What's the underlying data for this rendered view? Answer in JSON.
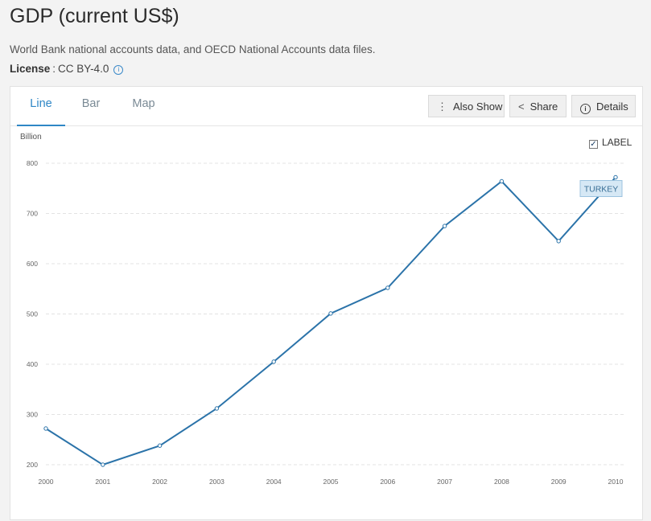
{
  "header": {
    "title": "GDP (current US$)",
    "source": "World Bank national accounts data, and OECD National Accounts data files.",
    "license_key": "License",
    "license_value": "CC BY-4.0"
  },
  "tabs": [
    {
      "label": "Line",
      "active": true
    },
    {
      "label": "Bar",
      "active": false
    },
    {
      "label": "Map",
      "active": false
    }
  ],
  "toolbar": {
    "also_show_label": "Also Show",
    "share_label": "Share",
    "details_label": "Details"
  },
  "label_toggle": {
    "text": "LABEL",
    "checked": true
  },
  "colors": {
    "accent": "#2f87c6",
    "line": "#2b73a9",
    "label_bg": "#d6e8f5"
  },
  "chart_data": {
    "type": "line",
    "ylabel": "Billion",
    "x": [
      "2000",
      "2001",
      "2002",
      "2003",
      "2004",
      "2005",
      "2006",
      "2007",
      "2008",
      "2009",
      "2010"
    ],
    "series": [
      {
        "name": "TURKEY",
        "values": [
          272,
          200,
          238,
          312,
          405,
          501,
          552,
          675,
          764,
          645,
          772
        ]
      }
    ],
    "ylim": [
      200,
      800
    ],
    "yticks": [
      200,
      300,
      400,
      500,
      600,
      700,
      800
    ],
    "grid": true
  }
}
